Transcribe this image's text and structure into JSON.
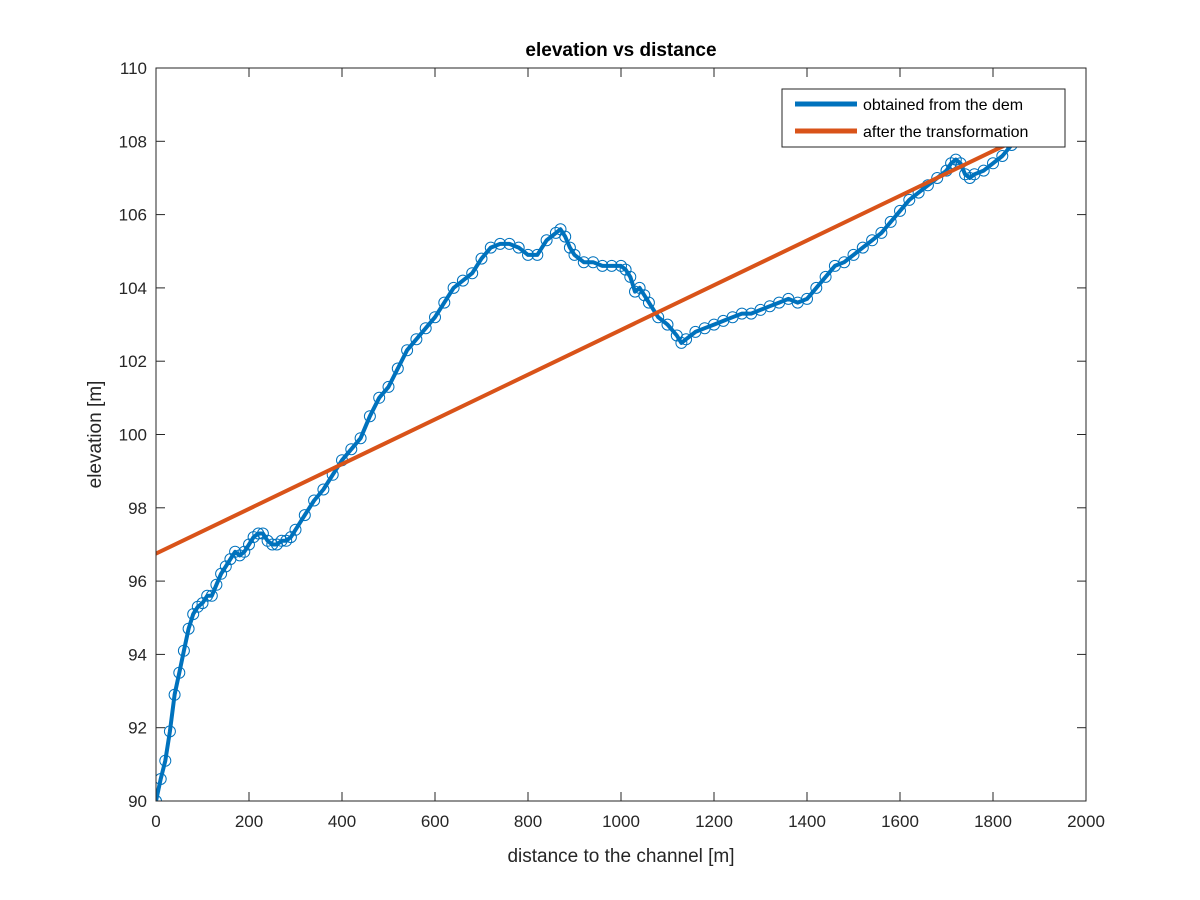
{
  "chart_data": {
    "type": "line",
    "title": "elevation vs distance",
    "xlabel": "distance to the channel [m]",
    "ylabel": "elevation [m]",
    "xlim": [
      0,
      2000
    ],
    "ylim": [
      90,
      110
    ],
    "xticks": [
      0,
      200,
      400,
      600,
      800,
      1000,
      1200,
      1400,
      1600,
      1800,
      2000
    ],
    "yticks": [
      90,
      92,
      94,
      96,
      98,
      100,
      102,
      104,
      106,
      108,
      110
    ],
    "grid": false,
    "legend_position": "top-right",
    "series": [
      {
        "name": "obtained from the dem",
        "color": "#0072BD",
        "marker": "circle",
        "x": [
          0,
          10,
          20,
          30,
          40,
          50,
          60,
          70,
          80,
          90,
          100,
          110,
          120,
          130,
          140,
          150,
          160,
          170,
          180,
          190,
          200,
          210,
          220,
          230,
          240,
          250,
          260,
          270,
          280,
          290,
          300,
          320,
          340,
          360,
          380,
          400,
          420,
          440,
          460,
          480,
          500,
          520,
          540,
          560,
          580,
          600,
          620,
          640,
          660,
          680,
          700,
          720,
          740,
          760,
          780,
          800,
          820,
          840,
          860,
          870,
          880,
          890,
          900,
          920,
          940,
          960,
          980,
          1000,
          1010,
          1020,
          1030,
          1040,
          1050,
          1060,
          1080,
          1100,
          1120,
          1130,
          1140,
          1160,
          1180,
          1200,
          1220,
          1240,
          1260,
          1280,
          1300,
          1320,
          1340,
          1360,
          1380,
          1400,
          1420,
          1440,
          1460,
          1480,
          1500,
          1520,
          1540,
          1560,
          1580,
          1600,
          1620,
          1640,
          1660,
          1680,
          1700,
          1710,
          1720,
          1730,
          1740,
          1750,
          1760,
          1780,
          1800,
          1820,
          1840,
          1860
        ],
        "values": [
          90.0,
          90.6,
          91.1,
          91.9,
          92.9,
          93.5,
          94.1,
          94.7,
          95.1,
          95.3,
          95.4,
          95.6,
          95.6,
          95.9,
          96.2,
          96.4,
          96.6,
          96.8,
          96.7,
          96.8,
          97.0,
          97.2,
          97.3,
          97.3,
          97.1,
          97.0,
          97.0,
          97.1,
          97.1,
          97.2,
          97.4,
          97.8,
          98.2,
          98.5,
          98.9,
          99.3,
          99.6,
          99.9,
          100.5,
          101.0,
          101.3,
          101.8,
          102.3,
          102.6,
          102.9,
          103.2,
          103.6,
          104.0,
          104.2,
          104.4,
          104.8,
          105.1,
          105.2,
          105.2,
          105.1,
          104.9,
          104.9,
          105.3,
          105.5,
          105.6,
          105.4,
          105.1,
          104.9,
          104.7,
          104.7,
          104.6,
          104.6,
          104.6,
          104.5,
          104.3,
          103.9,
          104.0,
          103.8,
          103.6,
          103.2,
          103.0,
          102.7,
          102.5,
          102.6,
          102.8,
          102.9,
          103.0,
          103.1,
          103.2,
          103.3,
          103.3,
          103.4,
          103.5,
          103.6,
          103.7,
          103.6,
          103.7,
          104.0,
          104.3,
          104.6,
          104.7,
          104.9,
          105.1,
          105.3,
          105.5,
          105.8,
          106.1,
          106.4,
          106.6,
          106.8,
          107.0,
          107.2,
          107.4,
          107.5,
          107.4,
          107.1,
          107.0,
          107.1,
          107.2,
          107.4,
          107.6,
          107.9,
          108.1
        ]
      },
      {
        "name": "after the transformation",
        "color": "#D95319",
        "marker": "none",
        "x": [
          0,
          1860
        ],
        "values": [
          96.75,
          108.1
        ]
      }
    ]
  }
}
